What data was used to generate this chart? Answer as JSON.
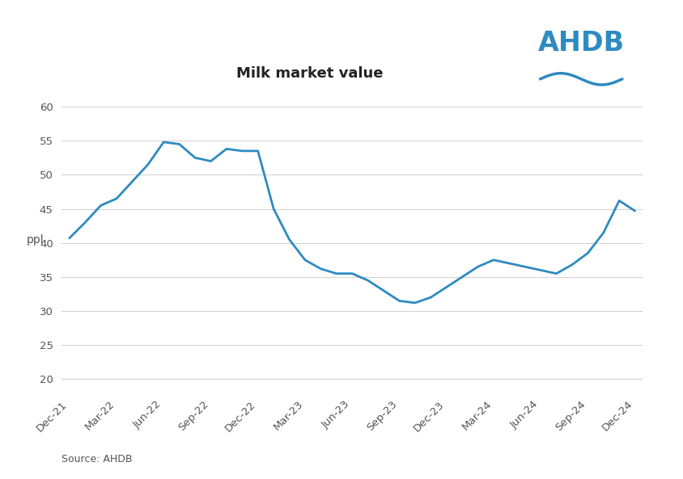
{
  "title": "Milk market value",
  "ylabel": "ppl",
  "source": "Source: AHDB",
  "line_color": "#2E8BC0",
  "background_color": "#ffffff",
  "grid_color": "#d0d0d0",
  "ylim": [
    18,
    63
  ],
  "yticks": [
    20,
    25,
    30,
    35,
    40,
    45,
    50,
    55,
    60
  ],
  "tick_labels": [
    "Dec-21",
    "Mar-22",
    "Jun-22",
    "Sep-22",
    "Dec-22",
    "Mar-23",
    "Jun-23",
    "Sep-23",
    "Dec-23",
    "Mar-24",
    "Jun-24",
    "Sep-24",
    "Dec-24"
  ],
  "tick_indices": [
    0,
    3,
    6,
    9,
    12,
    15,
    18,
    21,
    24,
    27,
    30,
    33,
    36
  ],
  "values": [
    40.7,
    43.0,
    45.5,
    46.5,
    49.0,
    51.5,
    54.8,
    54.5,
    52.5,
    52.0,
    53.8,
    53.5,
    53.5,
    45.0,
    40.5,
    37.5,
    36.2,
    35.5,
    35.5,
    34.5,
    33.0,
    31.5,
    31.2,
    32.0,
    33.5,
    35.0,
    36.5,
    37.5,
    37.0,
    36.5,
    36.0,
    35.5,
    36.8,
    38.5,
    41.5,
    46.2,
    44.7
  ],
  "title_fontsize": 13,
  "tick_fontsize": 9.5,
  "label_fontsize": 10,
  "source_fontsize": 9,
  "ahdb_color": "#2E8BC0",
  "ahdb_fontsize": 24
}
